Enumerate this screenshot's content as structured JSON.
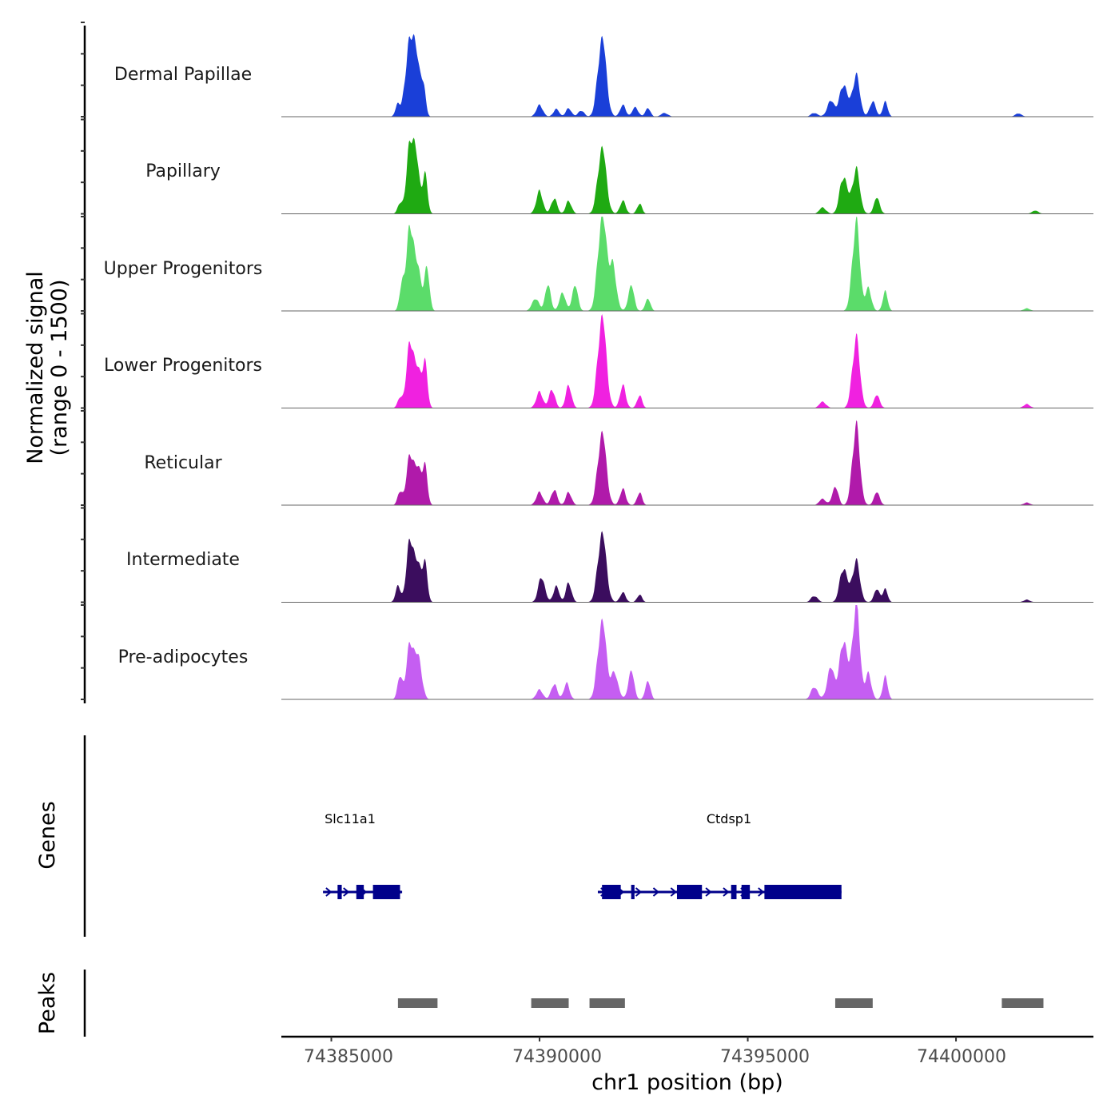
{
  "chart_data": {
    "type": "area",
    "title": "",
    "ylabel_line1": "Normalized signal",
    "ylabel_line2": "(range 0 - 1500)",
    "xlabel": "chr1 position (bp)",
    "xlim": [
      74383800,
      74403300
    ],
    "ylim": [
      0,
      1500
    ],
    "xticks": [
      74385000,
      74390000,
      74395000,
      74400000
    ],
    "xtick_labels": [
      "74385000",
      "74390000",
      "74395000",
      "74400000"
    ],
    "panel_labels": {
      "genes": "Genes",
      "peaks": "Peaks"
    },
    "tracks": [
      {
        "name": "Dermal Papillae",
        "color": "#1a3fd8",
        "peaks": [
          {
            "x": 74386600,
            "y": 200,
            "w": 60
          },
          {
            "x": 74386750,
            "y": 220,
            "w": 50
          },
          {
            "x": 74386900,
            "y": 1200,
            "w": 90
          },
          {
            "x": 74387050,
            "y": 700,
            "w": 80
          },
          {
            "x": 74387200,
            "y": 500,
            "w": 60
          },
          {
            "x": 74390000,
            "y": 180,
            "w": 80
          },
          {
            "x": 74390400,
            "y": 120,
            "w": 70
          },
          {
            "x": 74390700,
            "y": 130,
            "w": 70
          },
          {
            "x": 74391000,
            "y": 100,
            "w": 70
          },
          {
            "x": 74391500,
            "y": 1250,
            "w": 100
          },
          {
            "x": 74392000,
            "y": 180,
            "w": 70
          },
          {
            "x": 74392300,
            "y": 150,
            "w": 70
          },
          {
            "x": 74392600,
            "y": 140,
            "w": 60
          },
          {
            "x": 74393000,
            "y": 60,
            "w": 80
          },
          {
            "x": 74396600,
            "y": 60,
            "w": 80
          },
          {
            "x": 74397000,
            "y": 250,
            "w": 90
          },
          {
            "x": 74397300,
            "y": 520,
            "w": 90
          },
          {
            "x": 74397600,
            "y": 650,
            "w": 90
          },
          {
            "x": 74398000,
            "y": 250,
            "w": 70
          },
          {
            "x": 74398300,
            "y": 230,
            "w": 60
          },
          {
            "x": 74401500,
            "y": 50,
            "w": 80
          }
        ]
      },
      {
        "name": "Papillary",
        "color": "#1faa12",
        "peaks": [
          {
            "x": 74386650,
            "y": 150,
            "w": 60
          },
          {
            "x": 74386900,
            "y": 1100,
            "w": 90
          },
          {
            "x": 74387050,
            "y": 650,
            "w": 80
          },
          {
            "x": 74387250,
            "y": 600,
            "w": 60
          },
          {
            "x": 74390000,
            "y": 350,
            "w": 80
          },
          {
            "x": 74390350,
            "y": 250,
            "w": 70
          },
          {
            "x": 74390700,
            "y": 200,
            "w": 70
          },
          {
            "x": 74391500,
            "y": 1050,
            "w": 100
          },
          {
            "x": 74392000,
            "y": 200,
            "w": 70
          },
          {
            "x": 74392400,
            "y": 160,
            "w": 60
          },
          {
            "x": 74396800,
            "y": 100,
            "w": 80
          },
          {
            "x": 74397300,
            "y": 600,
            "w": 90
          },
          {
            "x": 74397600,
            "y": 700,
            "w": 90
          },
          {
            "x": 74398100,
            "y": 250,
            "w": 70
          },
          {
            "x": 74401900,
            "y": 50,
            "w": 80
          }
        ]
      },
      {
        "name": "Upper Progenitors",
        "color": "#5bdc6a",
        "peaks": [
          {
            "x": 74386700,
            "y": 400,
            "w": 60
          },
          {
            "x": 74386900,
            "y": 1350,
            "w": 90
          },
          {
            "x": 74387100,
            "y": 550,
            "w": 80
          },
          {
            "x": 74387300,
            "y": 650,
            "w": 60
          },
          {
            "x": 74389900,
            "y": 200,
            "w": 80
          },
          {
            "x": 74390200,
            "y": 400,
            "w": 70
          },
          {
            "x": 74390550,
            "y": 300,
            "w": 70
          },
          {
            "x": 74390850,
            "y": 400,
            "w": 70
          },
          {
            "x": 74391500,
            "y": 1500,
            "w": 100
          },
          {
            "x": 74391750,
            "y": 700,
            "w": 90
          },
          {
            "x": 74392200,
            "y": 400,
            "w": 70
          },
          {
            "x": 74392600,
            "y": 200,
            "w": 60
          },
          {
            "x": 74397600,
            "y": 1400,
            "w": 90
          },
          {
            "x": 74397900,
            "y": 350,
            "w": 70
          },
          {
            "x": 74398300,
            "y": 300,
            "w": 60
          },
          {
            "x": 74401700,
            "y": 40,
            "w": 80
          }
        ]
      },
      {
        "name": "Lower Progenitors",
        "color": "#f021e0",
        "peaks": [
          {
            "x": 74386650,
            "y": 150,
            "w": 60
          },
          {
            "x": 74386900,
            "y": 1050,
            "w": 90
          },
          {
            "x": 74387100,
            "y": 500,
            "w": 80
          },
          {
            "x": 74387250,
            "y": 650,
            "w": 60
          },
          {
            "x": 74390000,
            "y": 250,
            "w": 80
          },
          {
            "x": 74390300,
            "y": 300,
            "w": 70
          },
          {
            "x": 74390700,
            "y": 350,
            "w": 70
          },
          {
            "x": 74391500,
            "y": 1450,
            "w": 100
          },
          {
            "x": 74392000,
            "y": 350,
            "w": 70
          },
          {
            "x": 74392400,
            "y": 200,
            "w": 60
          },
          {
            "x": 74396800,
            "y": 100,
            "w": 80
          },
          {
            "x": 74397600,
            "y": 1100,
            "w": 90
          },
          {
            "x": 74398100,
            "y": 200,
            "w": 70
          },
          {
            "x": 74401700,
            "y": 60,
            "w": 80
          }
        ]
      },
      {
        "name": "Reticular",
        "color": "#b01aaa",
        "peaks": [
          {
            "x": 74386650,
            "y": 200,
            "w": 60
          },
          {
            "x": 74386900,
            "y": 800,
            "w": 90
          },
          {
            "x": 74387100,
            "y": 500,
            "w": 80
          },
          {
            "x": 74387250,
            "y": 550,
            "w": 60
          },
          {
            "x": 74390000,
            "y": 200,
            "w": 80
          },
          {
            "x": 74390350,
            "y": 250,
            "w": 70
          },
          {
            "x": 74390700,
            "y": 200,
            "w": 70
          },
          {
            "x": 74391500,
            "y": 1150,
            "w": 100
          },
          {
            "x": 74392000,
            "y": 250,
            "w": 70
          },
          {
            "x": 74392400,
            "y": 200,
            "w": 60
          },
          {
            "x": 74396800,
            "y": 100,
            "w": 80
          },
          {
            "x": 74397100,
            "y": 300,
            "w": 70
          },
          {
            "x": 74397600,
            "y": 1250,
            "w": 90
          },
          {
            "x": 74398100,
            "y": 200,
            "w": 70
          },
          {
            "x": 74401700,
            "y": 40,
            "w": 80
          }
        ]
      },
      {
        "name": "Intermediate",
        "color": "#3b0d5e",
        "peaks": [
          {
            "x": 74386600,
            "y": 250,
            "w": 60
          },
          {
            "x": 74386900,
            "y": 1000,
            "w": 90
          },
          {
            "x": 74387100,
            "y": 500,
            "w": 80
          },
          {
            "x": 74387250,
            "y": 550,
            "w": 60
          },
          {
            "x": 74390050,
            "y": 400,
            "w": 80
          },
          {
            "x": 74390400,
            "y": 250,
            "w": 70
          },
          {
            "x": 74390700,
            "y": 300,
            "w": 70
          },
          {
            "x": 74391500,
            "y": 1100,
            "w": 100
          },
          {
            "x": 74392000,
            "y": 150,
            "w": 70
          },
          {
            "x": 74392400,
            "y": 120,
            "w": 60
          },
          {
            "x": 74396600,
            "y": 100,
            "w": 80
          },
          {
            "x": 74397300,
            "y": 550,
            "w": 90
          },
          {
            "x": 74397600,
            "y": 650,
            "w": 90
          },
          {
            "x": 74398100,
            "y": 200,
            "w": 70
          },
          {
            "x": 74398300,
            "y": 200,
            "w": 60
          },
          {
            "x": 74401700,
            "y": 40,
            "w": 80
          }
        ]
      },
      {
        "name": "Pre-adipocytes",
        "color": "#c55ef2",
        "peaks": [
          {
            "x": 74386650,
            "y": 350,
            "w": 60
          },
          {
            "x": 74386900,
            "y": 900,
            "w": 90
          },
          {
            "x": 74387100,
            "y": 600,
            "w": 80
          },
          {
            "x": 74390000,
            "y": 150,
            "w": 80
          },
          {
            "x": 74390350,
            "y": 250,
            "w": 70
          },
          {
            "x": 74390650,
            "y": 250,
            "w": 70
          },
          {
            "x": 74391500,
            "y": 1250,
            "w": 100
          },
          {
            "x": 74391800,
            "y": 400,
            "w": 90
          },
          {
            "x": 74392200,
            "y": 450,
            "w": 70
          },
          {
            "x": 74392600,
            "y": 300,
            "w": 60
          },
          {
            "x": 74396600,
            "y": 200,
            "w": 80
          },
          {
            "x": 74397000,
            "y": 500,
            "w": 90
          },
          {
            "x": 74397300,
            "y": 950,
            "w": 90
          },
          {
            "x": 74397600,
            "y": 1500,
            "w": 90
          },
          {
            "x": 74397900,
            "y": 400,
            "w": 70
          },
          {
            "x": 74398300,
            "y": 350,
            "w": 60
          }
        ]
      }
    ],
    "genes": [
      {
        "name": "Slc11a1",
        "start": 74384800,
        "end": 74386700,
        "exons": [
          [
            74385150,
            74385250
          ],
          [
            74385600,
            74385780
          ],
          [
            74386000,
            74386650
          ]
        ]
      },
      {
        "name": "Ctdsp1",
        "start": 74391400,
        "end": 74397250,
        "exons": [
          [
            74391500,
            74391950
          ],
          [
            74392200,
            74392280
          ],
          [
            74393300,
            74393900
          ],
          [
            74394600,
            74394730
          ],
          [
            74394850,
            74395050
          ],
          [
            74395400,
            74397250
          ]
        ]
      }
    ],
    "peak_regions": [
      [
        74386600,
        74387550
      ],
      [
        74389800,
        74390700
      ],
      [
        74391200,
        74392050
      ],
      [
        74397100,
        74398000
      ],
      [
        74401100,
        74402100
      ]
    ]
  }
}
